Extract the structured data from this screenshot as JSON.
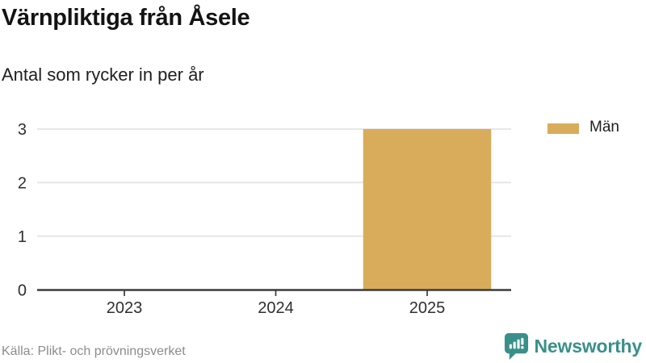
{
  "header": {
    "title": "Värnpliktiga från Åsele",
    "subtitle": "Antal som rycker in per år"
  },
  "chart_data": {
    "type": "bar",
    "categories": [
      "2023",
      "2024",
      "2025"
    ],
    "series": [
      {
        "name": "Män",
        "values": [
          0,
          0,
          3
        ],
        "color": "#D9AC5B"
      }
    ],
    "title": "Värnpliktiga från Åsele",
    "subtitle": "Antal som rycker in per år",
    "xlabel": "",
    "ylabel": "",
    "ylim": [
      0,
      3
    ],
    "yticks": [
      "0",
      "1",
      "2",
      "3"
    ],
    "grid": true,
    "legend_position": "right"
  },
  "legend": {
    "items": [
      {
        "label": "Män",
        "color": "#D9AC5B"
      }
    ]
  },
  "footer": {
    "source": "Källa: Plikt- och prövningsverket",
    "brand": "Newsworthy"
  },
  "colors": {
    "bar": "#D9AC5B",
    "baseline": "#3b3b3b",
    "gridline": "#e7e7e7",
    "axis_text": "#2f2f2f",
    "muted_text": "#8c8c8c",
    "brand_teal": "#39908A"
  }
}
